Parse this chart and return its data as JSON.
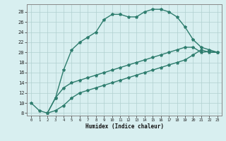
{
  "line1_x": [
    0,
    1,
    2,
    3,
    4,
    5,
    6,
    7,
    8,
    9,
    10,
    11,
    12,
    13,
    14,
    15,
    16,
    17,
    18,
    19,
    20,
    21,
    22,
    23
  ],
  "line1_y": [
    10,
    8.5,
    8,
    11,
    16.5,
    20.5,
    22,
    23,
    24,
    26.5,
    27.5,
    27.5,
    27,
    27,
    28,
    28.5,
    28.5,
    28,
    27,
    25,
    22.5,
    21,
    20.5,
    20
  ],
  "line2_x": [
    2,
    3,
    4,
    5,
    6,
    7,
    8,
    9,
    10,
    11,
    12,
    13,
    14,
    15,
    16,
    17,
    18,
    19,
    20,
    21,
    22,
    23
  ],
  "line2_y": [
    8,
    11,
    13,
    14,
    14.5,
    15,
    15.5,
    16,
    16.5,
    17,
    17.5,
    18,
    18.5,
    19,
    19.5,
    20,
    20.5,
    21,
    21,
    20,
    20.2,
    20
  ],
  "line3_x": [
    2,
    3,
    4,
    5,
    6,
    7,
    8,
    9,
    10,
    11,
    12,
    13,
    14,
    15,
    16,
    17,
    18,
    19,
    20,
    21,
    22,
    23
  ],
  "line3_y": [
    8,
    8.5,
    9.5,
    11,
    12,
    12.5,
    13,
    13.5,
    14,
    14.5,
    15,
    15.5,
    16,
    16.5,
    17,
    17.5,
    18,
    18.5,
    19.5,
    20.5,
    20,
    20
  ],
  "line_color": "#2e7d6e",
  "bg_color": "#d8eff0",
  "grid_color": "#b0d0d0",
  "xlim": [
    -0.5,
    23.5
  ],
  "ylim": [
    7.5,
    29.5
  ],
  "yticks": [
    8,
    10,
    12,
    14,
    16,
    18,
    20,
    22,
    24,
    26,
    28
  ],
  "xticks": [
    0,
    1,
    2,
    3,
    4,
    5,
    6,
    7,
    8,
    9,
    10,
    11,
    12,
    13,
    14,
    15,
    16,
    17,
    18,
    19,
    20,
    21,
    22,
    23
  ],
  "xlabel": "Humidex (Indice chaleur)",
  "marker": "*",
  "markersize": 3,
  "linewidth": 1.0
}
